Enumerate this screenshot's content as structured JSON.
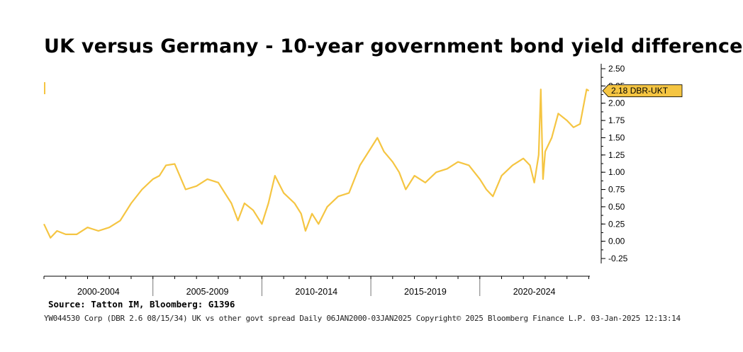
{
  "title": "UK versus Germany - 10-year government bond yield difference",
  "source": "Source: Tatton IM, Bloomberg: G1396",
  "footer": "YW044530 Corp (DBR 2.6 08/15/34) UK vs other govt spread  Daily 06JAN2000-03JAN2025  Copyright© 2025 Bloomberg Finance L.P.  03-Jan-2025 12:13:14",
  "colors": {
    "line": "#f5c542",
    "callout_fill": "#f5c542",
    "axis": "#000000"
  },
  "chart_data": {
    "type": "line",
    "title": "UK versus Germany - 10-year government bond yield difference",
    "xlabel": "",
    "ylabel": "",
    "ylim": [
      -0.35,
      2.55
    ],
    "y_ticks": [
      2.5,
      2.25,
      2.0,
      1.75,
      1.5,
      1.25,
      1.0,
      0.75,
      0.5,
      0.25,
      0.0,
      -0.25
    ],
    "y_tick_labels": [
      "2.50",
      "2.25",
      "2.00",
      "1.75",
      "1.50",
      "1.25",
      "1.00",
      "0.75",
      "0.50",
      "0.25",
      "0.00",
      "-0.25"
    ],
    "categories": [
      "2000-2004",
      "2005-2009",
      "2010-2014",
      "2015-2019",
      "2020-2024"
    ],
    "last_value_label": "2.18 DBR-UKT",
    "last_value": 2.18,
    "series": [
      {
        "name": "DBR-UKT",
        "x": [
          2000.0,
          2000.3,
          2000.6,
          2001.0,
          2001.5,
          2002.0,
          2002.5,
          2003.0,
          2003.5,
          2004.0,
          2004.5,
          2005.0,
          2005.3,
          2005.6,
          2006.0,
          2006.5,
          2007.0,
          2007.5,
          2008.0,
          2008.3,
          2008.6,
          2008.9,
          2009.2,
          2009.6,
          2010.0,
          2010.3,
          2010.6,
          2011.0,
          2011.5,
          2011.8,
          2012.0,
          2012.3,
          2012.6,
          2013.0,
          2013.5,
          2014.0,
          2014.5,
          2015.0,
          2015.3,
          2015.6,
          2016.0,
          2016.3,
          2016.6,
          2017.0,
          2017.5,
          2018.0,
          2018.5,
          2019.0,
          2019.5,
          2020.0,
          2020.3,
          2020.6,
          2021.0,
          2021.5,
          2022.0,
          2022.3,
          2022.5,
          2022.7,
          2022.8,
          2022.9,
          2023.0,
          2023.3,
          2023.6,
          2024.0,
          2024.3,
          2024.6,
          2024.9,
          2025.0
        ],
        "values": [
          0.25,
          0.05,
          0.15,
          0.1,
          0.1,
          0.2,
          0.15,
          0.2,
          0.3,
          0.55,
          0.75,
          0.9,
          0.95,
          1.1,
          1.12,
          0.75,
          0.8,
          0.9,
          0.85,
          0.7,
          0.55,
          0.3,
          0.55,
          0.45,
          0.25,
          0.55,
          0.95,
          0.7,
          0.55,
          0.4,
          0.15,
          0.4,
          0.25,
          0.5,
          0.65,
          0.7,
          1.1,
          1.35,
          1.5,
          1.3,
          1.15,
          1.0,
          0.75,
          0.95,
          0.85,
          1.0,
          1.05,
          1.15,
          1.1,
          0.9,
          0.75,
          0.65,
          0.95,
          1.1,
          1.2,
          1.1,
          0.85,
          1.25,
          2.2,
          0.9,
          1.3,
          1.5,
          1.85,
          1.75,
          1.65,
          1.7,
          2.2,
          2.18
        ]
      }
    ],
    "grid": false,
    "legend": "none"
  }
}
